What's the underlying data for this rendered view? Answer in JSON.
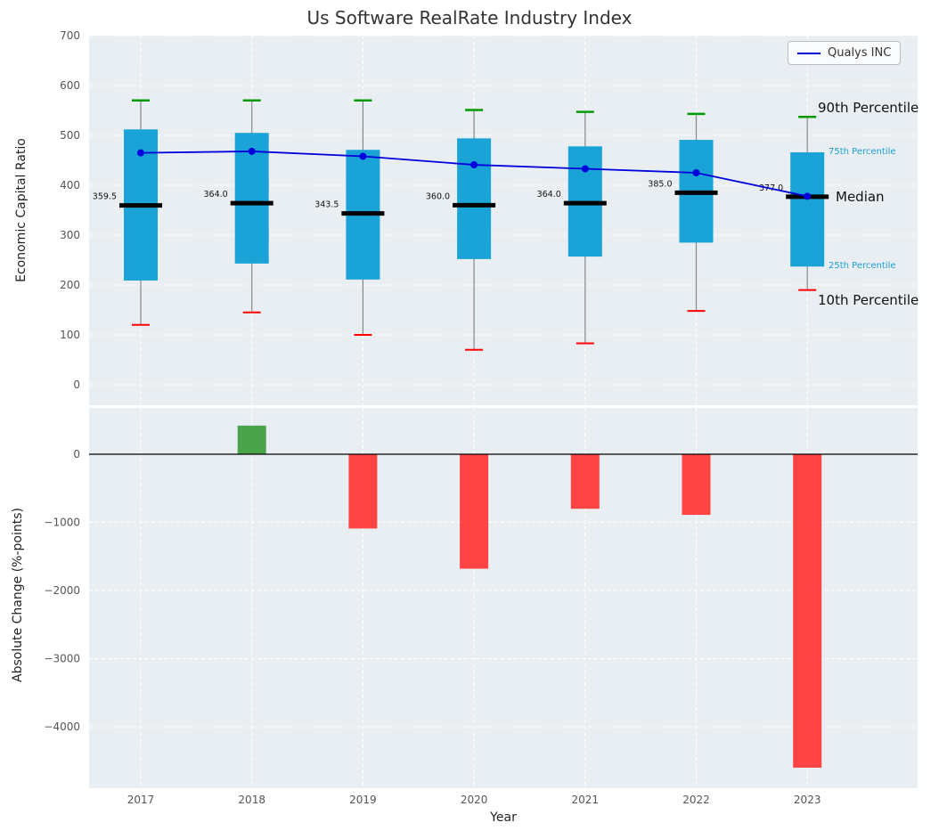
{
  "title": "Us Software RealRate Industry Index",
  "legend": {
    "series_label": "Qualys INC"
  },
  "right_labels": {
    "p90": "90th Percentile",
    "p75": "75th Percentile",
    "median": "Median",
    "p25": "25th Percentile",
    "p10": "10th Percentile"
  },
  "axes": {
    "xlabel": "Year",
    "top_ylabel": "Economic Capital Ratio",
    "bottom_ylabel": "Absolute Change (%-points)",
    "top_yticks": [
      "0",
      "100",
      "200",
      "300",
      "400",
      "500",
      "600",
      "700"
    ],
    "top_ytick_values": [
      0,
      100,
      200,
      300,
      400,
      500,
      600,
      700
    ],
    "bottom_yticks": [
      "0",
      "−1000",
      "−2000",
      "−3000",
      "−4000"
    ],
    "bottom_ytick_values": [
      0,
      -1000,
      -2000,
      -3000,
      -4000
    ],
    "xticks": [
      "2017",
      "2018",
      "2019",
      "2020",
      "2021",
      "2022",
      "2023"
    ]
  },
  "colors": {
    "box": "#1aa3d6",
    "median": "#000000",
    "p90_cap": "#009900",
    "p10_cap": "#ff0000",
    "whisker": "#888888",
    "line": "#0000dd",
    "bar_positive": "#4aa44a",
    "bar_negative": "#ff4444",
    "panel_bg": "#e9eef2",
    "grid": "#ffffff",
    "tick_text": "#555555",
    "annotation_small": "#1a9fd4"
  },
  "chart_data": [
    {
      "type": "box",
      "panel": "top",
      "title": "Us Software RealRate Industry Index",
      "ylabel": "Economic Capital Ratio",
      "ylim": [
        0,
        700
      ],
      "grid": true,
      "legend_position": "upper right",
      "categories": [
        "2017",
        "2018",
        "2019",
        "2020",
        "2021",
        "2022",
        "2023"
      ],
      "p90": [
        570,
        570,
        570,
        551,
        547,
        543,
        537
      ],
      "p75": [
        512,
        505,
        471,
        494,
        478,
        491,
        466
      ],
      "median": [
        359.5,
        364.0,
        343.5,
        360.0,
        364.0,
        385.0,
        377.0
      ],
      "median_labels": [
        "359.5",
        "364.0",
        "343.5",
        "360.0",
        "364.0",
        "385.0",
        "377.0"
      ],
      "p25": [
        209,
        243,
        211,
        252,
        257,
        285,
        237
      ],
      "p10": [
        120,
        145,
        100,
        70,
        83,
        148,
        190
      ],
      "series": [
        {
          "name": "Qualys INC",
          "values": [
            465,
            468,
            458,
            441,
            433,
            425,
            378
          ]
        }
      ]
    },
    {
      "type": "bar",
      "panel": "bottom",
      "ylabel": "Absolute Change (%-points)",
      "xlabel": "Year",
      "ylim": [
        -4900,
        700
      ],
      "grid": true,
      "categories": [
        "2017",
        "2018",
        "2019",
        "2020",
        "2021",
        "2022",
        "2023"
      ],
      "values": [
        0,
        420,
        -1090,
        -1680,
        -800,
        -890,
        -4600
      ]
    }
  ]
}
